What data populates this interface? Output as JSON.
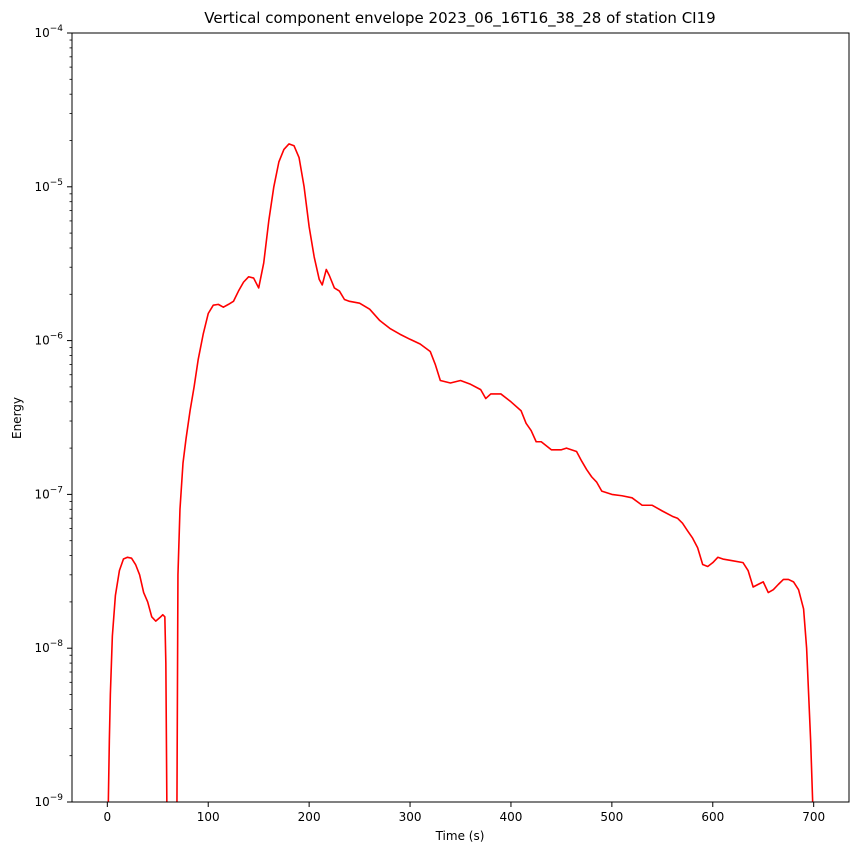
{
  "chart_data": {
    "type": "line",
    "title": "Vertical component envelope 2023_06_16T16_38_28 of station CI19",
    "xlabel": "Time (s)",
    "ylabel": "Energy",
    "xlim": [
      -35,
      735
    ],
    "ylim": [
      1e-09,
      0.0001
    ],
    "yscale": "log",
    "grid": false,
    "legend": "none",
    "x_ticks": [
      0,
      100,
      200,
      300,
      400,
      500,
      600,
      700
    ],
    "x_tick_labels": [
      "0",
      "100",
      "200",
      "300",
      "400",
      "500",
      "600",
      "700"
    ],
    "y_ticks": [
      1e-09,
      1e-08,
      1e-07,
      1e-06,
      1e-05,
      0.0001
    ],
    "y_tick_labels": [
      {
        "base": "10",
        "exp": "−9"
      },
      {
        "base": "10",
        "exp": "−8"
      },
      {
        "base": "10",
        "exp": "−7"
      },
      {
        "base": "10",
        "exp": "−6"
      },
      {
        "base": "10",
        "exp": "−5"
      },
      {
        "base": "10",
        "exp": "−4"
      }
    ],
    "series": [
      {
        "color": "#ff0000",
        "segments": [
          [
            [
              1,
              1e-09
            ],
            [
              2,
              2.5e-09
            ],
            [
              3,
              5e-09
            ],
            [
              5,
              1.2e-08
            ],
            [
              8,
              2.2e-08
            ],
            [
              12,
              3.2e-08
            ],
            [
              16,
              3.8e-08
            ],
            [
              20,
              3.9e-08
            ],
            [
              24,
              3.85e-08
            ],
            [
              28,
              3.5e-08
            ],
            [
              32,
              3e-08
            ],
            [
              36,
              2.3e-08
            ],
            [
              40,
              2e-08
            ],
            [
              44,
              1.6e-08
            ],
            [
              48,
              1.5e-08
            ],
            [
              52,
              1.58e-08
            ],
            [
              55,
              1.65e-08
            ],
            [
              57,
              1.6e-08
            ],
            [
              58,
              8e-09
            ],
            [
              59,
              1e-09
            ]
          ],
          [
            [
              69,
              1e-09
            ],
            [
              70,
              3e-08
            ],
            [
              72,
              8e-08
            ],
            [
              75,
              1.6e-07
            ],
            [
              78,
              2.3e-07
            ],
            [
              82,
              3.5e-07
            ],
            [
              86,
              5e-07
            ],
            [
              90,
              7.5e-07
            ],
            [
              95,
              1.1e-06
            ],
            [
              100,
              1.5e-06
            ],
            [
              105,
              1.7e-06
            ],
            [
              110,
              1.72e-06
            ],
            [
              115,
              1.65e-06
            ],
            [
              120,
              1.72e-06
            ],
            [
              125,
              1.8e-06
            ],
            [
              130,
              2.1e-06
            ],
            [
              135,
              2.4e-06
            ],
            [
              140,
              2.6e-06
            ],
            [
              145,
              2.55e-06
            ],
            [
              150,
              2.2e-06
            ],
            [
              155,
              3.2e-06
            ],
            [
              160,
              6e-06
            ],
            [
              165,
              1e-05
            ],
            [
              170,
              1.45e-05
            ],
            [
              175,
              1.75e-05
            ],
            [
              180,
              1.9e-05
            ],
            [
              185,
              1.85e-05
            ],
            [
              190,
              1.55e-05
            ],
            [
              195,
              1e-05
            ],
            [
              200,
              5.5e-06
            ],
            [
              205,
              3.5e-06
            ],
            [
              210,
              2.5e-06
            ],
            [
              213,
              2.3e-06
            ],
            [
              217,
              2.9e-06
            ],
            [
              220,
              2.65e-06
            ],
            [
              225,
              2.2e-06
            ],
            [
              230,
              2.1e-06
            ],
            [
              235,
              1.85e-06
            ],
            [
              240,
              1.8e-06
            ],
            [
              250,
              1.75e-06
            ],
            [
              260,
              1.6e-06
            ],
            [
              270,
              1.35e-06
            ],
            [
              280,
              1.2e-06
            ],
            [
              290,
              1.1e-06
            ],
            [
              300,
              1.02e-06
            ],
            [
              310,
              9.5e-07
            ],
            [
              320,
              8.5e-07
            ],
            [
              325,
              7e-07
            ],
            [
              330,
              5.5e-07
            ],
            [
              340,
              5.3e-07
            ],
            [
              350,
              5.5e-07
            ],
            [
              360,
              5.2e-07
            ],
            [
              370,
              4.8e-07
            ],
            [
              375,
              4.2e-07
            ],
            [
              380,
              4.5e-07
            ],
            [
              390,
              4.5e-07
            ],
            [
              400,
              4e-07
            ],
            [
              410,
              3.5e-07
            ],
            [
              415,
              2.9e-07
            ],
            [
              420,
              2.6e-07
            ],
            [
              425,
              2.2e-07
            ],
            [
              430,
              2.2e-07
            ],
            [
              440,
              1.95e-07
            ],
            [
              450,
              1.95e-07
            ],
            [
              455,
              2e-07
            ],
            [
              465,
              1.9e-07
            ],
            [
              470,
              1.65e-07
            ],
            [
              475,
              1.45e-07
            ],
            [
              480,
              1.3e-07
            ],
            [
              485,
              1.2e-07
            ],
            [
              490,
              1.05e-07
            ],
            [
              500,
              1e-07
            ],
            [
              510,
              9.8e-08
            ],
            [
              520,
              9.5e-08
            ],
            [
              530,
              8.5e-08
            ],
            [
              540,
              8.5e-08
            ],
            [
              550,
              7.8e-08
            ],
            [
              560,
              7.2e-08
            ],
            [
              565,
              7e-08
            ],
            [
              570,
              6.5e-08
            ],
            [
              575,
              5.8e-08
            ],
            [
              580,
              5.2e-08
            ],
            [
              585,
              4.5e-08
            ],
            [
              590,
              3.5e-08
            ],
            [
              595,
              3.4e-08
            ],
            [
              600,
              3.6e-08
            ],
            [
              605,
              3.9e-08
            ],
            [
              610,
              3.8e-08
            ],
            [
              620,
              3.7e-08
            ],
            [
              630,
              3.6e-08
            ],
            [
              635,
              3.2e-08
            ],
            [
              640,
              2.5e-08
            ],
            [
              645,
              2.6e-08
            ],
            [
              650,
              2.7e-08
            ],
            [
              655,
              2.3e-08
            ],
            [
              660,
              2.4e-08
            ],
            [
              665,
              2.6e-08
            ],
            [
              670,
              2.8e-08
            ],
            [
              675,
              2.8e-08
            ],
            [
              680,
              2.7e-08
            ],
            [
              685,
              2.4e-08
            ],
            [
              690,
              1.8e-08
            ],
            [
              693,
              1e-08
            ],
            [
              695,
              5e-09
            ],
            [
              697,
              2.5e-09
            ],
            [
              699,
              1e-09
            ]
          ]
        ]
      }
    ]
  }
}
